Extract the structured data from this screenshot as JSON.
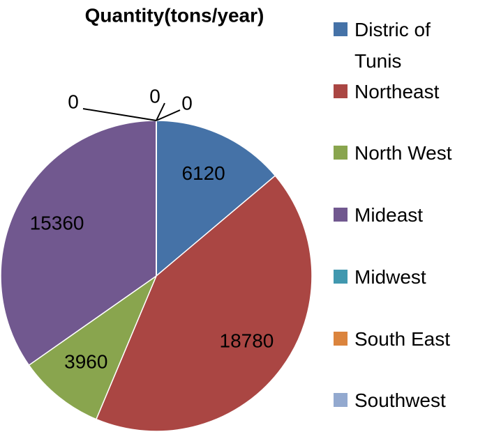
{
  "chart_data": {
    "type": "pie",
    "title": "Quantity(tons/year)",
    "categories": [
      "Distric of Tunis",
      "Northeast",
      "North West",
      "Mideast",
      "Midwest",
      "South East",
      "Southwest"
    ],
    "values": [
      6120,
      18780,
      3960,
      15360,
      0,
      0,
      0
    ],
    "colors": [
      "#4572A7",
      "#AA4643",
      "#89A54E",
      "#71588F",
      "#4198AF",
      "#DB843D",
      "#93A9CF"
    ],
    "legend": "right"
  }
}
